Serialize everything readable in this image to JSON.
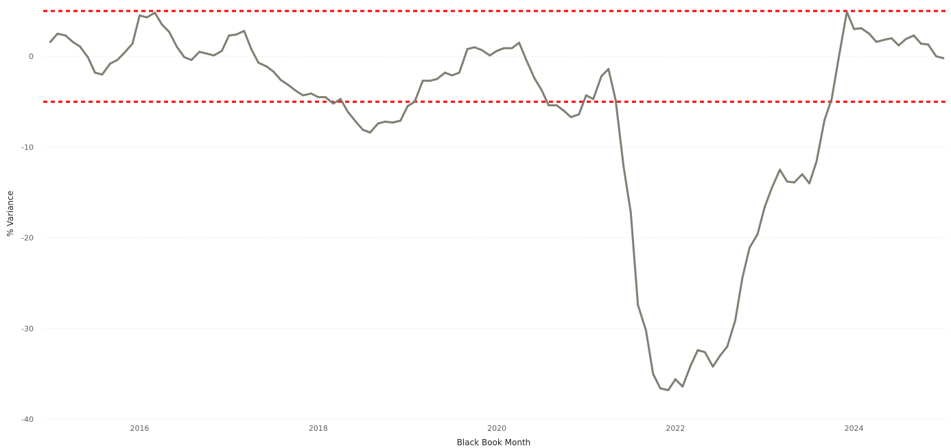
{
  "chart_data": {
    "type": "line",
    "title": "",
    "xlabel": "Black Book Month",
    "ylabel": "% Variance",
    "xlim": [
      2014.92,
      2025.04
    ],
    "ylim": [
      -40,
      5
    ],
    "x_ticks": [
      2016,
      2018,
      2020,
      2022,
      2024
    ],
    "x_tick_labels": [
      "2016",
      "2018",
      "2020",
      "2022",
      "2024"
    ],
    "y_ticks": [
      0,
      -10,
      -20,
      -30,
      -40
    ],
    "y_tick_labels": [
      "0",
      "-10",
      "-20",
      "-30",
      "-40"
    ],
    "grid": "horizontal dotted",
    "reference_lines": [
      {
        "y": 5,
        "color": "#ff0000",
        "style": "dotted"
      },
      {
        "y": -5,
        "color": "#ff0000",
        "style": "dotted"
      }
    ],
    "series": [
      {
        "color": "#7f7f73",
        "points": [
          [
            2015.0,
            1.6
          ],
          [
            2015.08,
            2.5
          ],
          [
            2015.17,
            2.3
          ],
          [
            2015.25,
            1.6
          ],
          [
            2015.33,
            1.1
          ],
          [
            2015.42,
            -0.1
          ],
          [
            2015.5,
            -1.8
          ],
          [
            2015.58,
            -2.0
          ],
          [
            2015.67,
            -0.8
          ],
          [
            2015.75,
            -0.4
          ],
          [
            2015.83,
            0.4
          ],
          [
            2015.92,
            1.4
          ],
          [
            2016.0,
            4.5
          ],
          [
            2016.08,
            4.3
          ],
          [
            2016.17,
            4.8
          ],
          [
            2016.25,
            3.5
          ],
          [
            2016.33,
            2.7
          ],
          [
            2016.42,
            1.0
          ],
          [
            2016.5,
            -0.1
          ],
          [
            2016.58,
            -0.4
          ],
          [
            2016.67,
            0.5
          ],
          [
            2016.75,
            0.3
          ],
          [
            2016.83,
            0.1
          ],
          [
            2016.92,
            0.6
          ],
          [
            2017.0,
            2.3
          ],
          [
            2017.08,
            2.4
          ],
          [
            2017.17,
            2.8
          ],
          [
            2017.25,
            0.8
          ],
          [
            2017.33,
            -0.7
          ],
          [
            2017.42,
            -1.1
          ],
          [
            2017.5,
            -1.7
          ],
          [
            2017.58,
            -2.6
          ],
          [
            2017.67,
            -3.2
          ],
          [
            2017.75,
            -3.8
          ],
          [
            2017.83,
            -4.3
          ],
          [
            2017.92,
            -4.1
          ],
          [
            2018.0,
            -4.5
          ],
          [
            2018.08,
            -4.5
          ],
          [
            2018.17,
            -5.2
          ],
          [
            2018.25,
            -4.7
          ],
          [
            2018.33,
            -6.1
          ],
          [
            2018.42,
            -7.2
          ],
          [
            2018.5,
            -8.1
          ],
          [
            2018.58,
            -8.4
          ],
          [
            2018.67,
            -7.4
          ],
          [
            2018.75,
            -7.2
          ],
          [
            2018.83,
            -7.3
          ],
          [
            2018.92,
            -7.1
          ],
          [
            2019.0,
            -5.5
          ],
          [
            2019.08,
            -5.0
          ],
          [
            2019.17,
            -2.7
          ],
          [
            2019.25,
            -2.7
          ],
          [
            2019.33,
            -2.5
          ],
          [
            2019.42,
            -1.8
          ],
          [
            2019.5,
            -2.1
          ],
          [
            2019.58,
            -1.8
          ],
          [
            2019.67,
            0.8
          ],
          [
            2019.75,
            1.0
          ],
          [
            2019.83,
            0.7
          ],
          [
            2019.92,
            0.1
          ],
          [
            2020.0,
            0.6
          ],
          [
            2020.08,
            0.9
          ],
          [
            2020.17,
            0.9
          ],
          [
            2020.25,
            1.5
          ],
          [
            2020.33,
            -0.4
          ],
          [
            2020.42,
            -2.4
          ],
          [
            2020.5,
            -3.7
          ],
          [
            2020.58,
            -5.4
          ],
          [
            2020.67,
            -5.4
          ],
          [
            2020.75,
            -6.0
          ],
          [
            2020.83,
            -6.7
          ],
          [
            2020.92,
            -6.4
          ],
          [
            2021.0,
            -4.3
          ],
          [
            2021.08,
            -4.7
          ],
          [
            2021.17,
            -2.2
          ],
          [
            2021.25,
            -1.4
          ],
          [
            2021.33,
            -4.8
          ],
          [
            2021.42,
            -12.2
          ],
          [
            2021.5,
            -17.2
          ],
          [
            2021.58,
            -27.4
          ],
          [
            2021.67,
            -30.2
          ],
          [
            2021.75,
            -35.0
          ],
          [
            2021.83,
            -36.6
          ],
          [
            2021.92,
            -36.8
          ],
          [
            2022.0,
            -35.6
          ],
          [
            2022.08,
            -36.4
          ],
          [
            2022.17,
            -34.1
          ],
          [
            2022.25,
            -32.4
          ],
          [
            2022.33,
            -32.6
          ],
          [
            2022.42,
            -34.2
          ],
          [
            2022.5,
            -33.0
          ],
          [
            2022.58,
            -32.0
          ],
          [
            2022.67,
            -29.1
          ],
          [
            2022.75,
            -24.4
          ],
          [
            2022.83,
            -21.1
          ],
          [
            2022.92,
            -19.6
          ],
          [
            2023.0,
            -16.6
          ],
          [
            2023.08,
            -14.5
          ],
          [
            2023.17,
            -12.5
          ],
          [
            2023.25,
            -13.8
          ],
          [
            2023.33,
            -13.9
          ],
          [
            2023.42,
            -13.0
          ],
          [
            2023.5,
            -14.0
          ],
          [
            2023.58,
            -11.6
          ],
          [
            2023.67,
            -7.0
          ],
          [
            2023.75,
            -4.7
          ],
          [
            2023.83,
            -0.1
          ],
          [
            2023.92,
            4.9
          ],
          [
            2024.0,
            3.0
          ],
          [
            2024.08,
            3.1
          ],
          [
            2024.17,
            2.5
          ],
          [
            2024.25,
            1.6
          ],
          [
            2024.33,
            1.8
          ],
          [
            2024.42,
            2.0
          ],
          [
            2024.5,
            1.2
          ],
          [
            2024.58,
            1.9
          ],
          [
            2024.67,
            2.3
          ],
          [
            2024.75,
            1.4
          ],
          [
            2024.83,
            1.3
          ],
          [
            2024.92,
            0.0
          ],
          [
            2025.0,
            -0.2
          ]
        ]
      }
    ]
  }
}
